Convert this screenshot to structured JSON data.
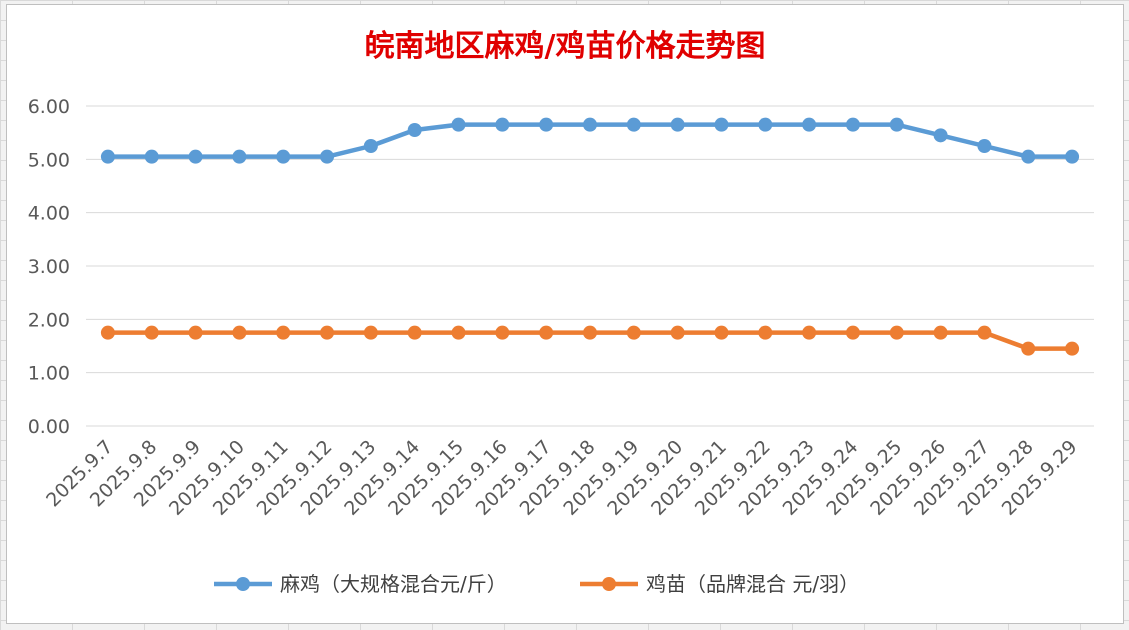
{
  "chart_data": {
    "type": "line",
    "title": "皖南地区麻鸡/鸡苗价格走势图",
    "categories": [
      "2025.9.7",
      "2025.9.8",
      "2025.9.9",
      "2025.9.10",
      "2025.9.11",
      "2025.9.12",
      "2025.9.13",
      "2025.9.14",
      "2025.9.15",
      "2025.9.16",
      "2025.9.17",
      "2025.9.18",
      "2025.9.19",
      "2025.9.20",
      "2025.9.21",
      "2025.9.22",
      "2025.9.23",
      "2025.9.24",
      "2025.9.25",
      "2025.9.26",
      "2025.9.27",
      "2025.9.28",
      "2025.9.29"
    ],
    "series": [
      {
        "name": "麻鸡（大规格混合元/斤）",
        "color": "#5b9bd5",
        "values": [
          5.05,
          5.05,
          5.05,
          5.05,
          5.05,
          5.05,
          5.25,
          5.55,
          5.65,
          5.65,
          5.65,
          5.65,
          5.65,
          5.65,
          5.65,
          5.65,
          5.65,
          5.65,
          5.65,
          5.45,
          5.25,
          5.05,
          5.05
        ]
      },
      {
        "name": "鸡苗（品牌混合 元/羽）",
        "color": "#ed7d31",
        "values": [
          1.75,
          1.75,
          1.75,
          1.75,
          1.75,
          1.75,
          1.75,
          1.75,
          1.75,
          1.75,
          1.75,
          1.75,
          1.75,
          1.75,
          1.75,
          1.75,
          1.75,
          1.75,
          1.75,
          1.75,
          1.75,
          1.45,
          1.45
        ]
      }
    ],
    "ylim": [
      0,
      6
    ],
    "yticks": [
      "0.00",
      "1.00",
      "2.00",
      "3.00",
      "4.00",
      "5.00",
      "6.00"
    ],
    "xlabel": "",
    "ylabel": "",
    "grid": true,
    "legend": "bottom"
  }
}
